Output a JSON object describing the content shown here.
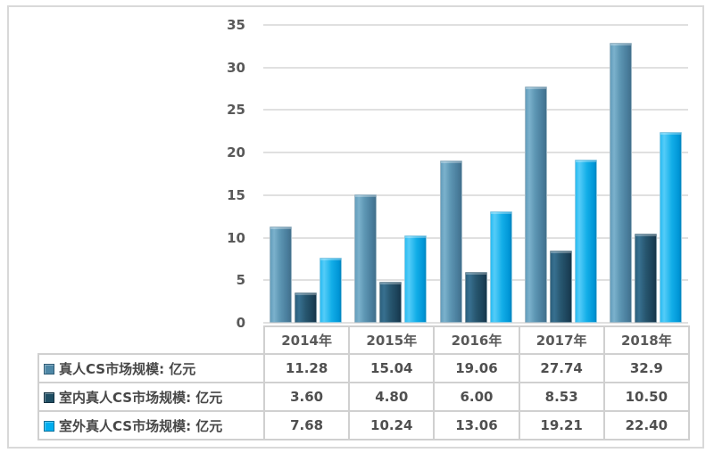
{
  "chart_data": {
    "type": "bar",
    "title": "",
    "xlabel": "",
    "ylabel": "",
    "categories": [
      "2014年",
      "2015年",
      "2016年",
      "2017年",
      "2018年"
    ],
    "series": [
      {
        "name": "真人CS市场规模: 亿元",
        "values": [
          11.28,
          15.04,
          19.06,
          27.74,
          32.9
        ],
        "display_values": [
          "11.28",
          "15.04",
          "19.06",
          "27.74",
          "32.9"
        ],
        "color": "#4E87A6"
      },
      {
        "name": "室内真人CS市场规模: 亿元",
        "values": [
          3.6,
          4.8,
          6.0,
          8.53,
          10.5
        ],
        "display_values": [
          "3.60",
          "4.80",
          "6.00",
          "8.53",
          "10.50"
        ],
        "color": "#1F4E63"
      },
      {
        "name": "室外真人CS市场规模: 亿元",
        "values": [
          7.68,
          10.24,
          13.06,
          19.21,
          22.4
        ],
        "display_values": [
          "7.68",
          "10.24",
          "13.06",
          "19.21",
          "22.40"
        ],
        "color": "#00AEEF"
      }
    ],
    "ylim": [
      0,
      35
    ],
    "yticks": [
      0,
      5,
      10,
      15,
      20,
      25,
      30,
      35
    ],
    "ytick_labels": [
      "0",
      "5",
      "10",
      "15",
      "20",
      "25",
      "30",
      "35"
    ],
    "grid": true,
    "legend_position": "data-table-left-column"
  },
  "colors": {
    "series1": "#4E87A6",
    "series2": "#1F4E63",
    "series3": "#00AEEF",
    "gridline": "#E0E0E0",
    "table_border": "#D0D0D0",
    "figure_border": "#D9D9D9",
    "text": "#595959",
    "background": "#FFFFFF"
  }
}
